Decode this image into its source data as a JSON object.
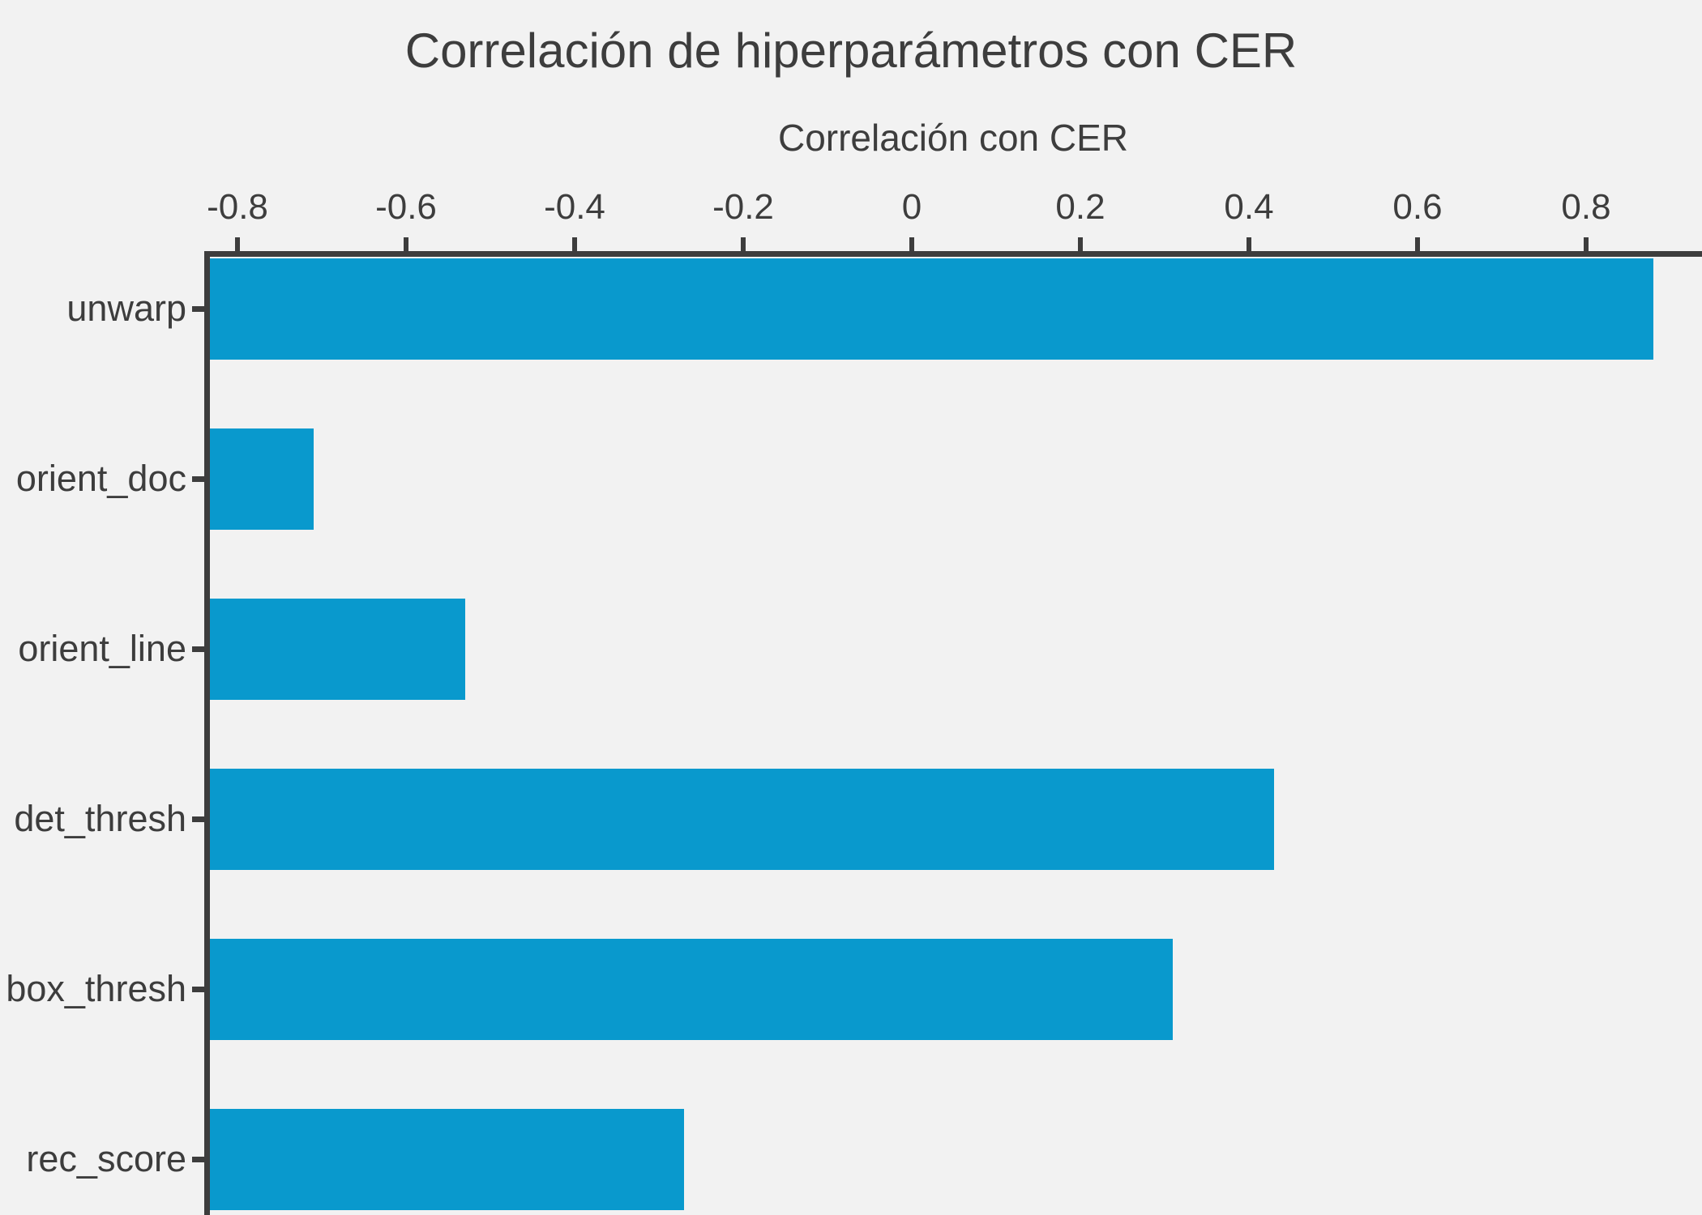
{
  "chart_data": {
    "type": "bar",
    "orientation": "horizontal",
    "title": "Correlación de hiperparámetros con CER",
    "xlabel": "Correlación con CER",
    "ylabel": "",
    "categories": [
      "unwarp",
      "orient_doc",
      "orient_line",
      "det_thresh",
      "box_thresh",
      "rec_score"
    ],
    "values": [
      0.88,
      -0.71,
      -0.53,
      0.43,
      0.31,
      -0.27
    ],
    "x_ticks": [
      -0.8,
      -0.6,
      -0.4,
      -0.2,
      0,
      0.2,
      0.4,
      0.6,
      0.8
    ],
    "x_tick_labels": [
      "-0.8",
      "-0.6",
      "-0.4",
      "-0.2",
      "0",
      "0.2",
      "0.4",
      "0.6",
      "0.8"
    ],
    "xlim": [
      -0.83,
      0.94
    ],
    "x_axis_position": "top",
    "bars_start_at_axis_min": true,
    "grid": false,
    "legend": "none",
    "colors": {
      "background": "#f2f2f2",
      "bar": "#0999cd",
      "axis": "#3d3d3d",
      "text": "#3d3d3d"
    }
  }
}
